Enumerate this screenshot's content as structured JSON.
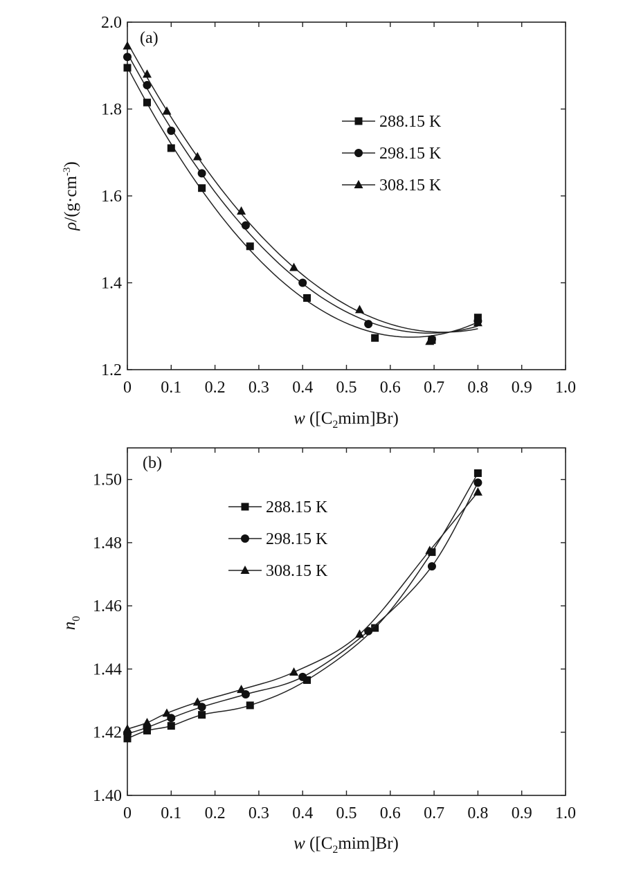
{
  "chart_data": [
    {
      "type": "line",
      "panel_label": "(a)",
      "xlabel": {
        "var": "w",
        "prefix": " ([C",
        "sub": "2",
        "suffix": "mim]Br)"
      },
      "ylabel": {
        "sym": "ρ",
        "main": "/(g·cm",
        "sup": "-3",
        "close": ")"
      },
      "xlim": [
        0,
        1.0
      ],
      "ylim": [
        1.2,
        2.0
      ],
      "xticks": [
        "0",
        "0.1",
        "0.2",
        "0.3",
        "0.4",
        "0.5",
        "0.6",
        "0.7",
        "0.8",
        "0.9",
        "1.0"
      ],
      "yticks": [
        "1.2",
        "1.4",
        "1.6",
        "1.8",
        "2.0"
      ],
      "legend_position": "upper-right",
      "series": [
        {
          "name": "288.15 K",
          "marker": "square",
          "x": [
            0.0,
            0.045,
            0.1,
            0.17,
            0.28,
            0.41,
            0.565,
            0.695,
            0.8
          ],
          "y": [
            1.895,
            1.815,
            1.71,
            1.618,
            1.484,
            1.365,
            1.273,
            1.268,
            1.32
          ]
        },
        {
          "name": "298.15 K",
          "marker": "circle",
          "x": [
            0.0,
            0.045,
            0.1,
            0.17,
            0.27,
            0.4,
            0.55,
            0.695,
            0.8
          ],
          "y": [
            1.92,
            1.855,
            1.75,
            1.652,
            1.532,
            1.4,
            1.305,
            1.27,
            1.312
          ]
        },
        {
          "name": "308.15 K",
          "marker": "triangle",
          "x": [
            0.0,
            0.045,
            0.09,
            0.16,
            0.26,
            0.38,
            0.53,
            0.69,
            0.8
          ],
          "y": [
            1.945,
            1.88,
            1.795,
            1.69,
            1.565,
            1.435,
            1.338,
            1.265,
            1.308
          ]
        }
      ]
    },
    {
      "type": "line",
      "panel_label": "(b)",
      "xlabel": {
        "var": "w",
        "prefix": " ([C",
        "sub": "2",
        "suffix": "mim]Br)"
      },
      "ylabel": {
        "sym": "n",
        "sub": "0"
      },
      "xlim": [
        0,
        1.0
      ],
      "ylim": [
        1.4,
        1.51
      ],
      "yticks_values": [
        1.4,
        1.42,
        1.44,
        1.46,
        1.48,
        1.5
      ],
      "xticks": [
        "0",
        "0.1",
        "0.2",
        "0.3",
        "0.4",
        "0.5",
        "0.6",
        "0.7",
        "0.8",
        "0.9",
        "1.0"
      ],
      "yticks": [
        "1.40",
        "1.42",
        "1.44",
        "1.46",
        "1.48",
        "1.50"
      ],
      "legend_position": "upper-left",
      "series": [
        {
          "name": "288.15 K",
          "marker": "square",
          "x": [
            0.0,
            0.045,
            0.1,
            0.17,
            0.28,
            0.41,
            0.565,
            0.695,
            0.8
          ],
          "y": [
            1.418,
            1.4205,
            1.422,
            1.4255,
            1.4285,
            1.4365,
            1.453,
            1.477,
            1.502
          ]
        },
        {
          "name": "298.15 K",
          "marker": "circle",
          "x": [
            0.0,
            0.045,
            0.1,
            0.17,
            0.27,
            0.4,
            0.55,
            0.695,
            0.8
          ],
          "y": [
            1.4195,
            1.4215,
            1.4245,
            1.428,
            1.432,
            1.4375,
            1.452,
            1.4725,
            1.499
          ]
        },
        {
          "name": "308.15 K",
          "marker": "triangle",
          "x": [
            0.0,
            0.045,
            0.09,
            0.16,
            0.26,
            0.38,
            0.53,
            0.69,
            0.8
          ],
          "y": [
            1.421,
            1.423,
            1.426,
            1.4295,
            1.4335,
            1.439,
            1.451,
            1.4775,
            1.496
          ]
        }
      ]
    }
  ]
}
